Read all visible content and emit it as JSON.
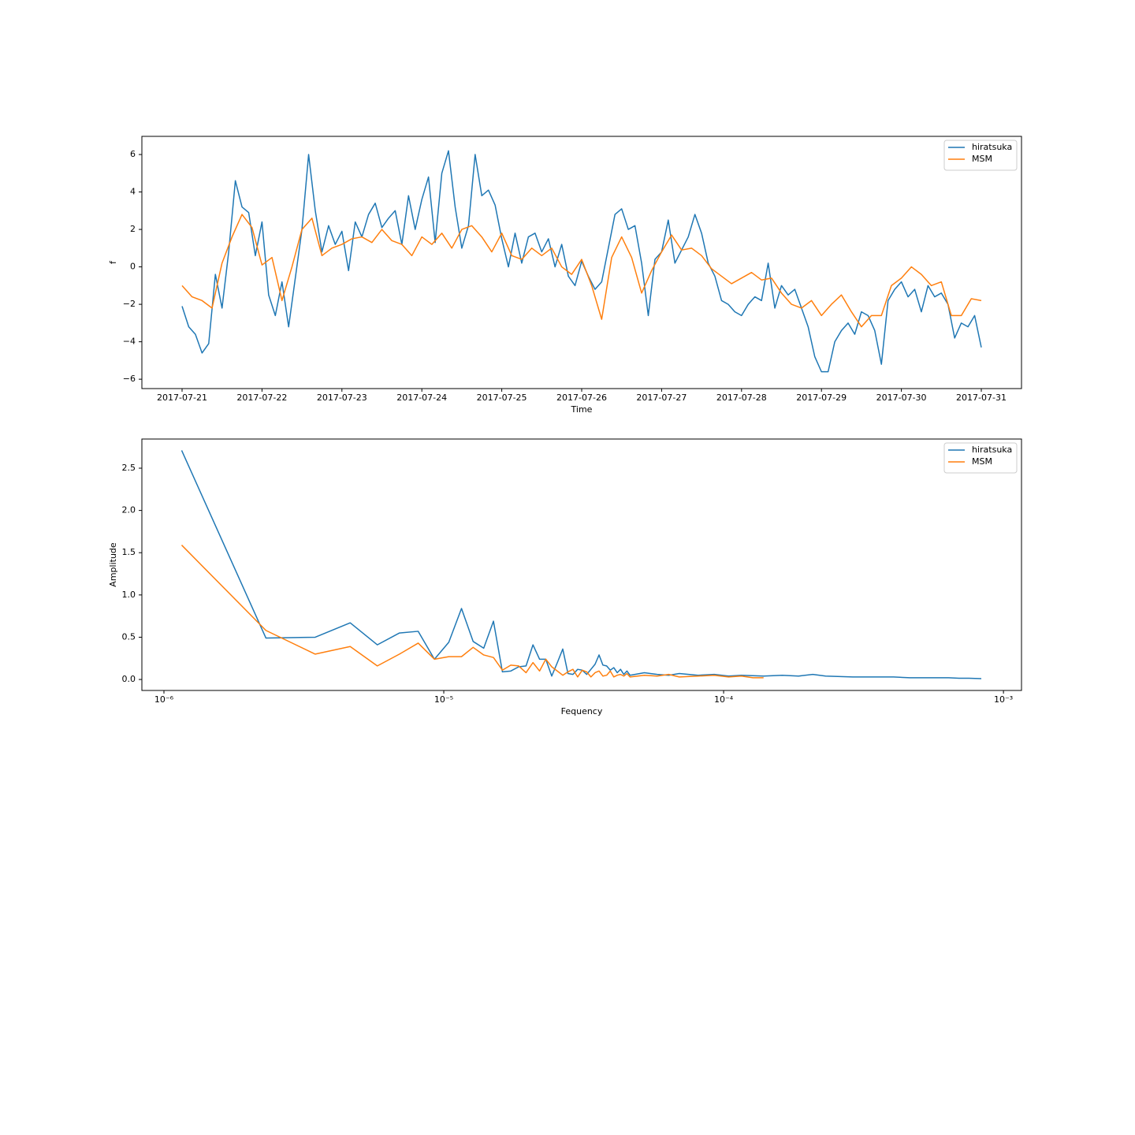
{
  "chart_data": [
    {
      "type": "line",
      "xlabel": "Time",
      "ylabel": "f",
      "xlim": [
        -12.07,
        252.07
      ],
      "ylim": [
        -6.5,
        6.97
      ],
      "xticks": [
        {
          "value": 0,
          "label": "2017-07-21"
        },
        {
          "value": 24,
          "label": "2017-07-22"
        },
        {
          "value": 48,
          "label": "2017-07-23"
        },
        {
          "value": 72,
          "label": "2017-07-24"
        },
        {
          "value": 96,
          "label": "2017-07-25"
        },
        {
          "value": 120,
          "label": "2017-07-26"
        },
        {
          "value": 144,
          "label": "2017-07-27"
        },
        {
          "value": 168,
          "label": "2017-07-28"
        },
        {
          "value": 192,
          "label": "2017-07-29"
        },
        {
          "value": 216,
          "label": "2017-07-30"
        },
        {
          "value": 240,
          "label": "2017-07-31"
        }
      ],
      "yticks": [
        {
          "value": -6,
          "label": "−6"
        },
        {
          "value": -4,
          "label": "−4"
        },
        {
          "value": -2,
          "label": "−2"
        },
        0,
        2,
        4,
        6
      ],
      "legend": "upper right",
      "series": [
        {
          "name": "hiratsuka",
          "color": "#1f77b4",
          "x": [
            0,
            2,
            4,
            6,
            8,
            10,
            12,
            14,
            16,
            18,
            20,
            22,
            24,
            26,
            28,
            30,
            32,
            34,
            36,
            38,
            40,
            42,
            44,
            46,
            48,
            50,
            52,
            54,
            56,
            58,
            60,
            62,
            64,
            66,
            68,
            70,
            72,
            74,
            76,
            78,
            80,
            82,
            84,
            86,
            88,
            90,
            92,
            94,
            96,
            98,
            100,
            102,
            104,
            106,
            108,
            110,
            112,
            114,
            116,
            118,
            120,
            122,
            124,
            126,
            128,
            130,
            132,
            134,
            136,
            138,
            140,
            142,
            144,
            146,
            148,
            150,
            152,
            154,
            156,
            158,
            160,
            162,
            164,
            166,
            168,
            170,
            172,
            174,
            176,
            178,
            180,
            182,
            184,
            186,
            188,
            190,
            192,
            194,
            196,
            198,
            200,
            202,
            204,
            206,
            208,
            210,
            212,
            214,
            216,
            218,
            220,
            222,
            224,
            226,
            228,
            230,
            232,
            234,
            236,
            238,
            240
          ],
          "values": [
            -2.1,
            -3.2,
            -3.6,
            -4.6,
            -4.1,
            -0.4,
            -2.2,
            0.8,
            4.6,
            3.2,
            2.9,
            0.6,
            2.4,
            -1.5,
            -2.6,
            -0.8,
            -3.2,
            -0.6,
            2.0,
            6.0,
            3.0,
            0.8,
            2.2,
            1.2,
            1.9,
            -0.2,
            2.4,
            1.6,
            2.8,
            3.4,
            2.1,
            2.6,
            3.0,
            1.2,
            3.8,
            2.0,
            3.6,
            4.8,
            1.3,
            5.0,
            6.2,
            3.2,
            1.0,
            2.2,
            6.0,
            3.8,
            4.1,
            3.3,
            1.5,
            0.0,
            1.8,
            0.2,
            1.6,
            1.8,
            0.8,
            1.5,
            0.0,
            1.2,
            -0.5,
            -1.0,
            0.3,
            -0.5,
            -1.2,
            -0.8,
            1.0,
            2.8,
            3.1,
            2.0,
            2.2,
            0.2,
            -2.6,
            0.4,
            0.8,
            2.5,
            0.2,
            0.9,
            1.6,
            2.8,
            1.8,
            0.2,
            -0.5,
            -1.8,
            -2.0,
            -2.4,
            -2.6,
            -2.0,
            -1.6,
            -1.8,
            0.2,
            -2.2,
            -1.0,
            -1.5,
            -1.2,
            -2.2,
            -3.2,
            -4.8,
            -5.6,
            -5.6,
            -4.0,
            -3.4,
            -3.0,
            -3.6,
            -2.4,
            -2.6,
            -3.4,
            -5.2,
            -1.8,
            -1.2,
            -0.8,
            -1.6,
            -1.2,
            -2.4,
            -1.0,
            -1.6,
            -1.4,
            -2.0,
            -3.8,
            -3.0,
            -3.2,
            -2.6,
            -4.3
          ]
        },
        {
          "name": "MSM",
          "color": "#ff7f0e",
          "x": [
            0,
            3,
            6,
            9,
            12,
            15,
            18,
            21,
            24,
            27,
            30,
            33,
            36,
            39,
            42,
            45,
            48,
            51,
            54,
            57,
            60,
            63,
            66,
            69,
            72,
            75,
            78,
            81,
            84,
            87,
            90,
            93,
            96,
            99,
            102,
            105,
            108,
            111,
            114,
            117,
            120,
            123,
            126,
            129,
            132,
            135,
            138,
            141,
            144,
            147,
            150,
            153,
            156,
            159,
            162,
            165,
            168,
            171,
            174,
            177,
            180,
            183,
            186,
            189,
            192,
            195,
            198,
            201,
            204,
            207,
            210,
            213,
            216,
            219,
            222,
            225,
            228,
            231,
            234,
            237,
            240
          ],
          "values": [
            -1.0,
            -1.6,
            -1.8,
            -2.2,
            0.2,
            1.6,
            2.8,
            2.1,
            0.1,
            0.5,
            -1.8,
            0.0,
            2.0,
            2.6,
            0.6,
            1.0,
            1.2,
            1.5,
            1.6,
            1.3,
            2.0,
            1.4,
            1.2,
            0.6,
            1.6,
            1.2,
            1.8,
            1.0,
            2.0,
            2.2,
            1.6,
            0.8,
            1.8,
            0.6,
            0.4,
            1.0,
            0.6,
            1.0,
            0.0,
            -0.4,
            0.4,
            -1.0,
            -2.8,
            0.5,
            1.6,
            0.5,
            -1.4,
            -0.2,
            0.8,
            1.7,
            0.9,
            1.0,
            0.6,
            -0.1,
            -0.5,
            -0.9,
            -0.6,
            -0.3,
            -0.7,
            -0.6,
            -1.4,
            -2.0,
            -2.2,
            -1.8,
            -2.6,
            -2.0,
            -1.5,
            -2.4,
            -3.2,
            -2.6,
            -2.6,
            -1.0,
            -0.6,
            0.0,
            -0.4,
            -1.0,
            -0.8,
            -2.6,
            -2.6,
            -1.7,
            -1.8
          ]
        }
      ]
    },
    {
      "type": "line",
      "xlabel": "Fequency",
      "ylabel": "Amplitude",
      "xscale": "log",
      "xlim": [
        8.34e-07,
        0.00116
      ],
      "ylim": [
        -0.13,
        2.845
      ],
      "xticks": [
        {
          "value": 1e-06,
          "label": "10⁻⁶"
        },
        {
          "value": 1e-05,
          "label": "10⁻⁵"
        },
        {
          "value": 0.0001,
          "label": "10⁻⁴"
        },
        {
          "value": 0.001,
          "label": "10⁻³"
        }
      ],
      "yticks": [
        {
          "value": 0,
          "label": "0.0"
        },
        0.5,
        {
          "value": 1,
          "label": "1.0"
        },
        1.5,
        {
          "value": 2,
          "label": "2.0"
        },
        2.5
      ],
      "legend": "upper right",
      "series": [
        {
          "name": "hiratsuka",
          "color": "#1f77b4",
          "x": [
            1.157e-06,
            2.315e-06,
            3.472e-06,
            4.63e-06,
            5.787e-06,
            6.944e-06,
            8.102e-06,
            9.259e-06,
            1.042e-05,
            1.157e-05,
            1.273e-05,
            1.389e-05,
            1.505e-05,
            1.62e-05,
            1.736e-05,
            1.852e-05,
            1.968e-05,
            2.083e-05,
            2.199e-05,
            2.315e-05,
            2.431e-05,
            2.546e-05,
            2.662e-05,
            2.778e-05,
            2.894e-05,
            3.009e-05,
            3.125e-05,
            3.241e-05,
            3.356e-05,
            3.472e-05,
            3.588e-05,
            3.704e-05,
            3.819e-05,
            3.935e-05,
            4.051e-05,
            4.167e-05,
            4.282e-05,
            4.398e-05,
            4.514e-05,
            4.63e-05,
            5.208e-05,
            5.787e-05,
            6.366e-05,
            6.944e-05,
            8.102e-05,
            9.259e-05,
            0.0001042,
            0.0001157,
            0.0001389,
            0.000162,
            0.0001852,
            0.0002083,
            0.0002315,
            0.0002894,
            0.0003472,
            0.0004051,
            0.000463,
            0.0005208,
            0.0005787,
            0.0006366,
            0.0006944,
            0.0007523,
            0.0008333
          ],
          "values": [
            2.71,
            0.49,
            0.5,
            0.67,
            0.41,
            0.55,
            0.57,
            0.24,
            0.44,
            0.84,
            0.45,
            0.37,
            0.69,
            0.09,
            0.1,
            0.15,
            0.16,
            0.41,
            0.24,
            0.24,
            0.04,
            0.2,
            0.36,
            0.07,
            0.06,
            0.12,
            0.11,
            0.06,
            0.12,
            0.18,
            0.29,
            0.17,
            0.16,
            0.11,
            0.14,
            0.08,
            0.12,
            0.06,
            0.1,
            0.05,
            0.08,
            0.06,
            0.05,
            0.07,
            0.05,
            0.06,
            0.04,
            0.05,
            0.04,
            0.05,
            0.04,
            0.06,
            0.04,
            0.03,
            0.03,
            0.03,
            0.02,
            0.02,
            0.02,
            0.02,
            0.015,
            0.015,
            0.01
          ]
        },
        {
          "name": "MSM",
          "color": "#ff7f0e",
          "x": [
            1.157e-06,
            2.315e-06,
            3.472e-06,
            4.63e-06,
            5.787e-06,
            6.944e-06,
            8.102e-06,
            9.259e-06,
            1.042e-05,
            1.157e-05,
            1.273e-05,
            1.389e-05,
            1.505e-05,
            1.62e-05,
            1.736e-05,
            1.852e-05,
            1.968e-05,
            2.083e-05,
            2.199e-05,
            2.315e-05,
            2.431e-05,
            2.546e-05,
            2.662e-05,
            2.778e-05,
            2.894e-05,
            3.009e-05,
            3.125e-05,
            3.241e-05,
            3.356e-05,
            3.472e-05,
            3.588e-05,
            3.704e-05,
            3.819e-05,
            3.935e-05,
            4.051e-05,
            4.167e-05,
            4.282e-05,
            4.398e-05,
            4.514e-05,
            4.63e-05,
            5.208e-05,
            5.787e-05,
            6.366e-05,
            6.944e-05,
            8.102e-05,
            9.259e-05,
            0.0001042,
            0.0001157,
            0.0001273,
            0.0001389
          ],
          "values": [
            1.59,
            0.58,
            0.3,
            0.39,
            0.16,
            0.3,
            0.43,
            0.24,
            0.27,
            0.27,
            0.38,
            0.29,
            0.26,
            0.11,
            0.17,
            0.16,
            0.08,
            0.2,
            0.1,
            0.24,
            0.15,
            0.1,
            0.05,
            0.09,
            0.12,
            0.03,
            0.11,
            0.09,
            0.03,
            0.08,
            0.1,
            0.04,
            0.05,
            0.1,
            0.03,
            0.05,
            0.06,
            0.04,
            0.07,
            0.03,
            0.05,
            0.04,
            0.06,
            0.03,
            0.04,
            0.05,
            0.03,
            0.04,
            0.02,
            0.02
          ]
        }
      ]
    }
  ]
}
